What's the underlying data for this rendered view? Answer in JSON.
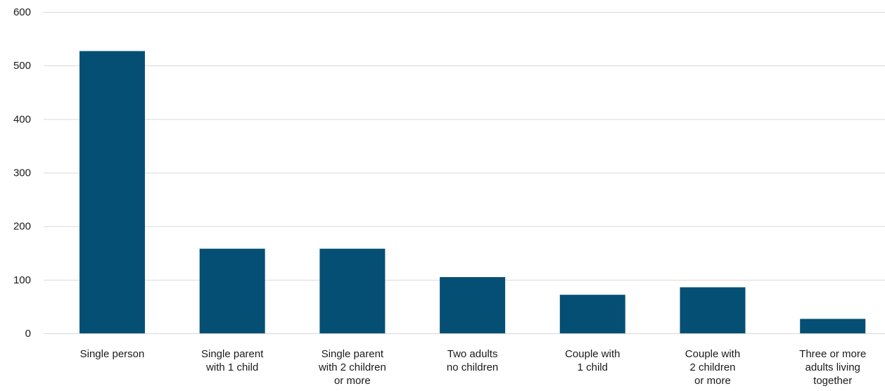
{
  "chart_data": {
    "type": "bar",
    "title": "",
    "xlabel": "",
    "ylabel": "",
    "categories": [
      [
        "Single person"
      ],
      [
        "Single parent",
        "with 1 child"
      ],
      [
        "Single parent",
        "with 2 children",
        "or more"
      ],
      [
        "Two adults",
        "no children"
      ],
      [
        "Couple with",
        "1 child"
      ],
      [
        "Couple with",
        "2 children",
        "or more"
      ],
      [
        "Three or more",
        "adults living",
        "together"
      ]
    ],
    "values": [
      527,
      158,
      158,
      105,
      72,
      86,
      27
    ],
    "ylim": [
      0,
      600
    ],
    "yticks": [
      0,
      100,
      200,
      300,
      400,
      500,
      600
    ],
    "grid": true,
    "bar_color": "#064f74"
  }
}
